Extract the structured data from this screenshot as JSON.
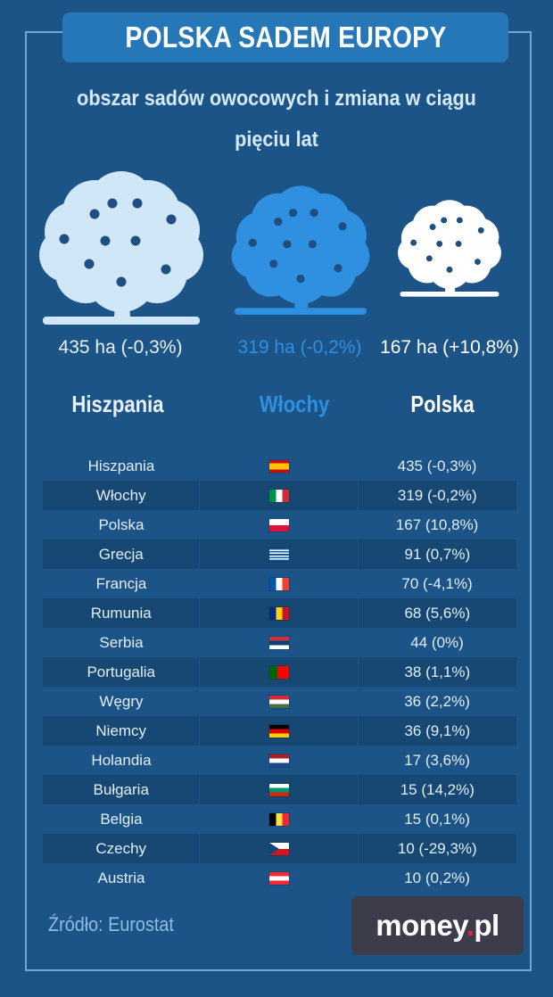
{
  "title": "POLSKA SADEM EUROPY",
  "subtitle_line1": "obszar sadów owocowych i zmiana w ciągu",
  "subtitle_line2": "pięciu lat",
  "colors": {
    "background": "#1d5487",
    "title_box": "#2577b8",
    "tree_spain": "#cfe7f7",
    "tree_italy": "#2f8fe0",
    "tree_poland": "#ffffff",
    "fruit": "#1f4f80"
  },
  "top3": [
    {
      "country": "Hiszpania",
      "label": "435 ha (-0,3%)",
      "value": 435,
      "color": "#cfe7f7",
      "label_color": "#e6f1fa"
    },
    {
      "country": "Włochy",
      "label": "319 ha (-0,2%)",
      "value": 319,
      "color": "#2f8fe0",
      "label_color": "#2f8fe0"
    },
    {
      "country": "Polska",
      "label": "167 ha (+10,8%)",
      "value": 167,
      "color": "#ffffff",
      "label_color": "#ffffff"
    }
  ],
  "chart_data": {
    "type": "table",
    "title": "POLSKA SADEM EUROPY",
    "subtitle": "obszar sadów owocowych i zmiana w ciągu pięciu lat",
    "columns": [
      "country",
      "flag",
      "value"
    ],
    "rows": [
      {
        "country": "Hiszpania",
        "flag": "es-flag-icon",
        "value": 435,
        "change": -0.3,
        "text": "435 (-0,3%)"
      },
      {
        "country": "Włochy",
        "flag": "it-flag-icon",
        "value": 319,
        "change": -0.2,
        "text": "319 (-0,2%)"
      },
      {
        "country": "Polska",
        "flag": "pl-flag-icon",
        "value": 167,
        "change": 10.8,
        "text": "167 (10,8%)"
      },
      {
        "country": "Grecja",
        "flag": "gr-flag-icon",
        "value": 91,
        "change": 0.7,
        "text": "91 (0,7%)"
      },
      {
        "country": "Francja",
        "flag": "fr-flag-icon",
        "value": 70,
        "change": -4.1,
        "text": "70 (-4,1%)"
      },
      {
        "country": "Rumunia",
        "flag": "ro-flag-icon",
        "value": 68,
        "change": 5.6,
        "text": "68 (5,6%)"
      },
      {
        "country": "Serbia",
        "flag": "rs-flag-icon",
        "value": 44,
        "change": 0,
        "text": "44 (0%)"
      },
      {
        "country": "Portugalia",
        "flag": "pt-flag-icon",
        "value": 38,
        "change": 1.1,
        "text": "38 (1,1%)"
      },
      {
        "country": "Węgry",
        "flag": "hu-flag-icon",
        "value": 36,
        "change": 2.2,
        "text": "36 (2,2%)"
      },
      {
        "country": "Niemcy",
        "flag": "de-flag-icon",
        "value": 36,
        "change": 9.1,
        "text": "36 (9,1%)"
      },
      {
        "country": "Holandia",
        "flag": "nl-flag-icon",
        "value": 17,
        "change": 3.6,
        "text": "17 (3,6%)"
      },
      {
        "country": "Bułgaria",
        "flag": "bg-flag-icon",
        "value": 15,
        "change": 14.2,
        "text": "15 (14,2%)"
      },
      {
        "country": "Belgia",
        "flag": "be-flag-icon",
        "value": 15,
        "change": 0.1,
        "text": "15 (0,1%)"
      },
      {
        "country": "Czechy",
        "flag": "cz-flag-icon",
        "value": 10,
        "change": -29.3,
        "text": "10 (-29,3%)"
      },
      {
        "country": "Austria",
        "flag": "at-flag-icon",
        "value": 10,
        "change": 0.2,
        "text": "10 (0,2%)"
      }
    ]
  },
  "flags": {
    "es": [
      "#c60b1e",
      "#ffc400",
      "#c60b1e"
    ],
    "it": [
      "#009246",
      "#ffffff",
      "#ce2b37"
    ],
    "pl": [
      "#ffffff",
      "#dc143c"
    ],
    "gr": [
      "#0d5eaf",
      "#ffffff"
    ],
    "fr": [
      "#0055a4",
      "#ffffff",
      "#ef4135"
    ],
    "ro": [
      "#002b7f",
      "#fcd116",
      "#ce1126"
    ],
    "rs": [
      "#c6363c",
      "#0c4076",
      "#ffffff"
    ],
    "pt": [
      "#006600",
      "#ff0000"
    ],
    "hu": [
      "#cd2a3e",
      "#ffffff",
      "#436f4d"
    ],
    "de": [
      "#000000",
      "#dd0000",
      "#ffce00"
    ],
    "nl": [
      "#ae1c28",
      "#ffffff",
      "#21468b"
    ],
    "bg": [
      "#ffffff",
      "#00966e",
      "#d62612"
    ],
    "be": [
      "#000000",
      "#fae042",
      "#ed2939"
    ],
    "cz": [
      "#ffffff",
      "#d7141a",
      "#11457e"
    ],
    "at": [
      "#ed2939",
      "#ffffff",
      "#ed2939"
    ]
  },
  "source": "Źródło: Eurostat",
  "logo": {
    "main": "money",
    "dot": ".",
    "suffix": "pl"
  }
}
